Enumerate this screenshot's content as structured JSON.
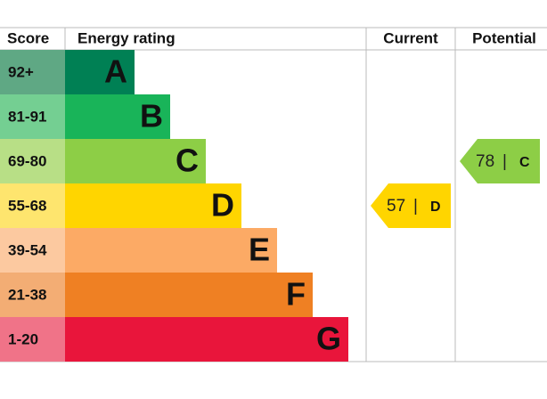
{
  "header": {
    "score": "Score",
    "rating": "Energy rating",
    "current": "Current",
    "potential": "Potential"
  },
  "bands": [
    {
      "score": "92+",
      "letter": "A",
      "color": "#008054",
      "tint": "#5fa884"
    },
    {
      "score": "81-91",
      "letter": "B",
      "color": "#19b459",
      "tint": "#74cf92"
    },
    {
      "score": "69-80",
      "letter": "C",
      "color": "#8dce46",
      "tint": "#b8df86"
    },
    {
      "score": "55-68",
      "letter": "D",
      "color": "#ffd500",
      "tint": "#fee56e"
    },
    {
      "score": "39-54",
      "letter": "E",
      "color": "#fcaa65",
      "tint": "#fcc9a0"
    },
    {
      "score": "21-38",
      "letter": "F",
      "color": "#ef8023",
      "tint": "#f3ad74"
    },
    {
      "score": "1-20",
      "letter": "G",
      "color": "#e9153b",
      "tint": "#f07388"
    }
  ],
  "separator": "|",
  "current": {
    "value": 57,
    "band": "D"
  },
  "potential": {
    "value": 78,
    "band": "C"
  }
}
